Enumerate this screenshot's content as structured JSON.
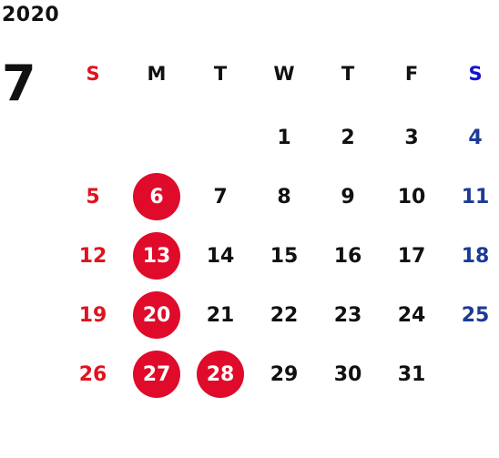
{
  "header": {
    "year": "2020",
    "month": "7"
  },
  "weekdays": [
    {
      "label": "S",
      "type": "sun"
    },
    {
      "label": "M",
      "type": "weekday"
    },
    {
      "label": "T",
      "type": "weekday"
    },
    {
      "label": "W",
      "type": "weekday"
    },
    {
      "label": "T",
      "type": "weekday"
    },
    {
      "label": "F",
      "type": "weekday"
    },
    {
      "label": "S",
      "type": "sat"
    }
  ],
  "weeks": [
    [
      "",
      "",
      "",
      "1",
      "2",
      "3",
      "4"
    ],
    [
      "5",
      "6",
      "7",
      "8",
      "9",
      "10",
      "11"
    ],
    [
      "12",
      "13",
      "14",
      "15",
      "16",
      "17",
      "18"
    ],
    [
      "19",
      "20",
      "21",
      "22",
      "23",
      "24",
      "25"
    ],
    [
      "26",
      "27",
      "28",
      "29",
      "30",
      "31",
      ""
    ]
  ],
  "highlighted_days": [
    "6",
    "13",
    "20",
    "27",
    "28"
  ],
  "colors": {
    "sunday": "#e0131f",
    "saturday": "#1c3a96",
    "saturday_header": "#1212d6",
    "highlight_circle": "#e00a2a",
    "text": "#111111"
  }
}
